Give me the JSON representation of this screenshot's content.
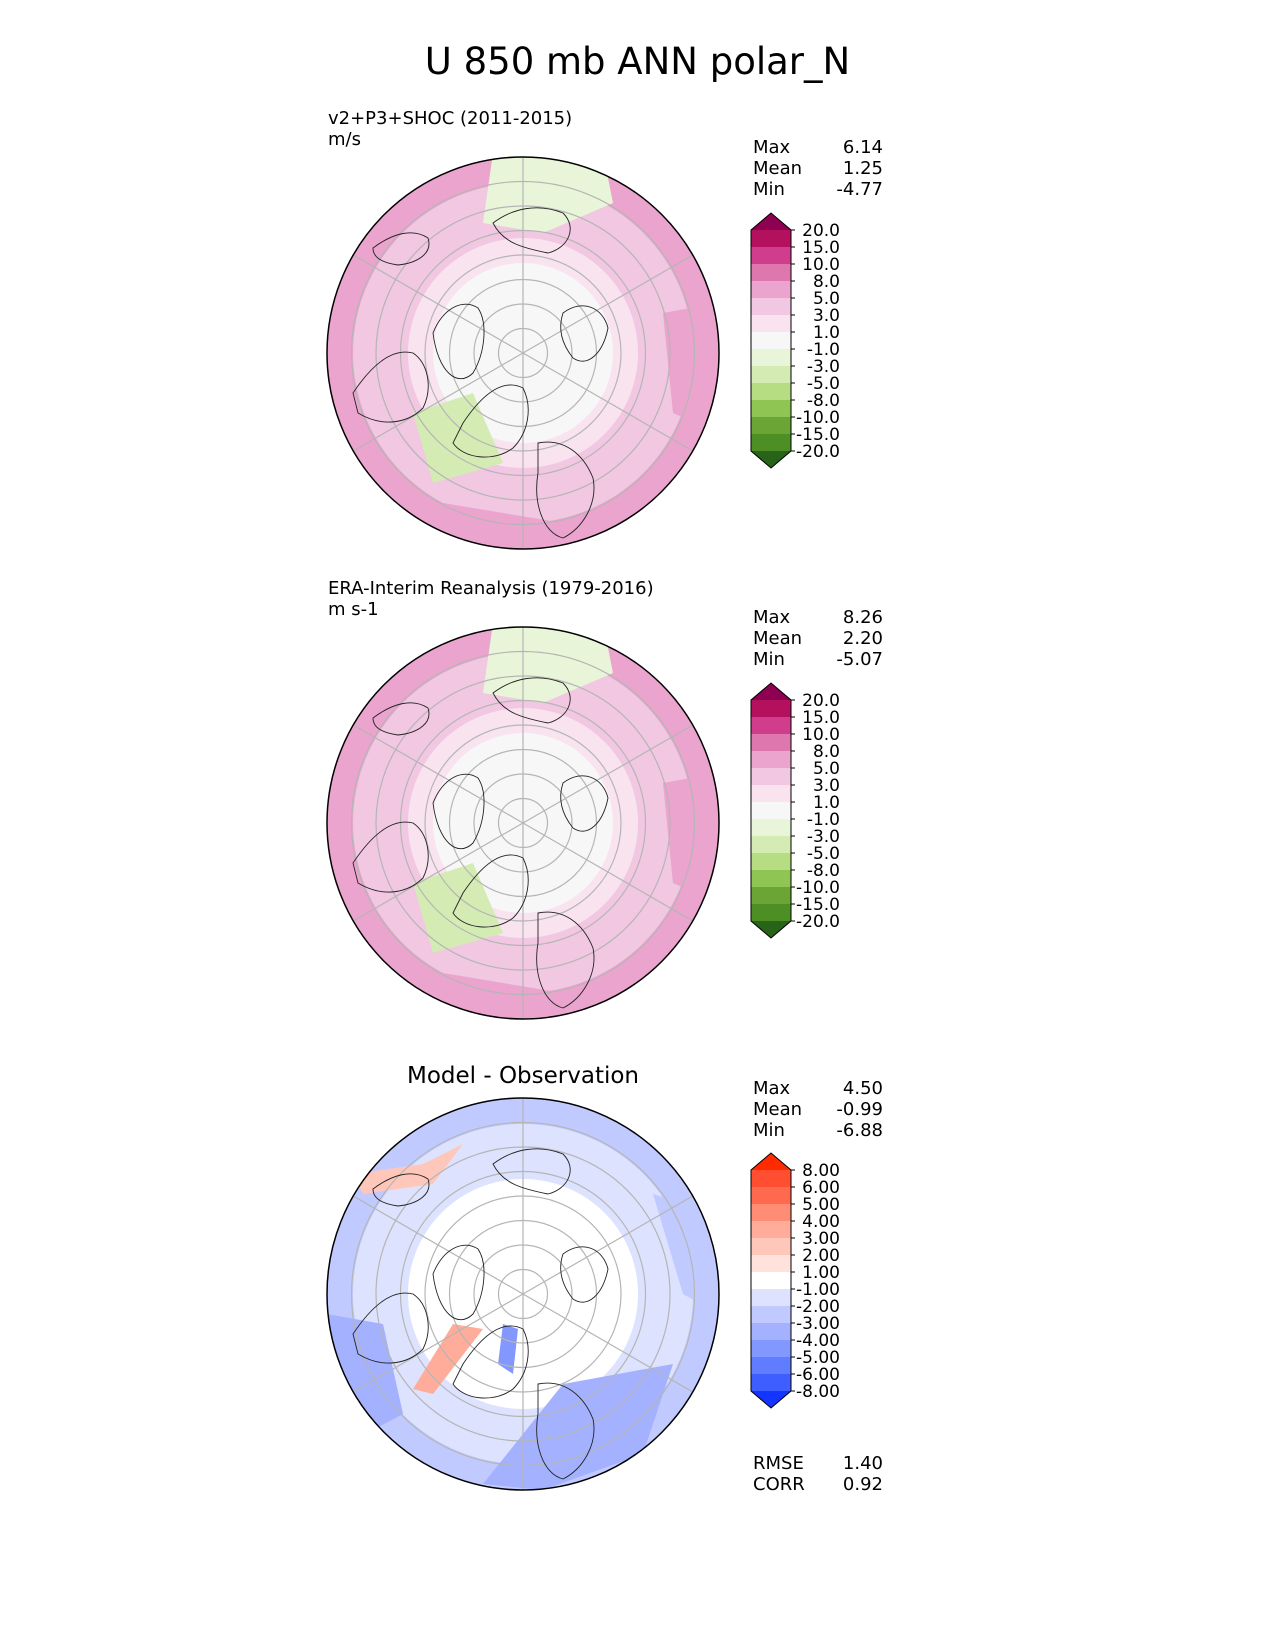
{
  "title": "U 850 mb ANN polar_N",
  "chart_data": [
    {
      "type": "heatmap",
      "projection": "north-polar-stereographic",
      "title": "v2+P3+SHOC (2011-2015)",
      "units": "m/s",
      "stats": [
        {
          "label": "Max",
          "value": "6.14"
        },
        {
          "label": "Mean",
          "value": "1.25"
        },
        {
          "label": "Min",
          "value": "-4.77"
        }
      ],
      "colorbar": {
        "labels": [
          "20.0",
          "15.0",
          "10.0",
          "8.0",
          "5.0",
          "3.0",
          "1.0",
          "-1.0",
          "-3.0",
          "-5.0",
          "-8.0",
          "-10.0",
          "-15.0",
          "-20.0"
        ],
        "colors": [
          "#8e0152",
          "#b3105e",
          "#cf3d8c",
          "#de77ae",
          "#eaa4cd",
          "#f1c7e2",
          "#f8e3ef",
          "#f7f7f7",
          "#e9f5d9",
          "#d4ecb3",
          "#b6dd82",
          "#8fc553",
          "#6aa536",
          "#4d8f24",
          "#276419"
        ],
        "extend": "both"
      }
    },
    {
      "type": "heatmap",
      "projection": "north-polar-stereographic",
      "title": "ERA-Interim Reanalysis (1979-2016)",
      "units": "m s-1",
      "stats": [
        {
          "label": "Max",
          "value": "8.26"
        },
        {
          "label": "Mean",
          "value": "2.20"
        },
        {
          "label": "Min",
          "value": "-5.07"
        }
      ],
      "colorbar": {
        "labels": [
          "20.0",
          "15.0",
          "10.0",
          "8.0",
          "5.0",
          "3.0",
          "1.0",
          "-1.0",
          "-3.0",
          "-5.0",
          "-8.0",
          "-10.0",
          "-15.0",
          "-20.0"
        ],
        "colors": [
          "#8e0152",
          "#b3105e",
          "#cf3d8c",
          "#de77ae",
          "#eaa4cd",
          "#f1c7e2",
          "#f8e3ef",
          "#f7f7f7",
          "#e9f5d9",
          "#d4ecb3",
          "#b6dd82",
          "#8fc553",
          "#6aa536",
          "#4d8f24",
          "#276419"
        ],
        "extend": "both"
      }
    },
    {
      "type": "heatmap",
      "projection": "north-polar-stereographic",
      "title": "Model - Observation",
      "units": "",
      "stats": [
        {
          "label": "Max",
          "value": "4.50"
        },
        {
          "label": "Mean",
          "value": "-0.99"
        },
        {
          "label": "Min",
          "value": "-6.88"
        }
      ],
      "metrics": [
        {
          "label": "RMSE",
          "value": "1.40"
        },
        {
          "label": "CORR",
          "value": "0.92"
        }
      ],
      "colorbar": {
        "labels": [
          "8.00",
          "6.00",
          "5.00",
          "4.00",
          "3.00",
          "2.00",
          "1.00",
          "-1.00",
          "-2.00",
          "-3.00",
          "-4.00",
          "-5.00",
          "-6.00",
          "-8.00"
        ],
        "colors": [
          "#ff2a00",
          "#ff4e30",
          "#ff6a4f",
          "#ff8d75",
          "#ffac9a",
          "#ffc7ba",
          "#ffe2dc",
          "#ffffff",
          "#dde3ff",
          "#c0caff",
          "#a3b1ff",
          "#8298ff",
          "#617dff",
          "#3f5eff",
          "#1434ff"
        ],
        "extend": "both"
      }
    }
  ]
}
